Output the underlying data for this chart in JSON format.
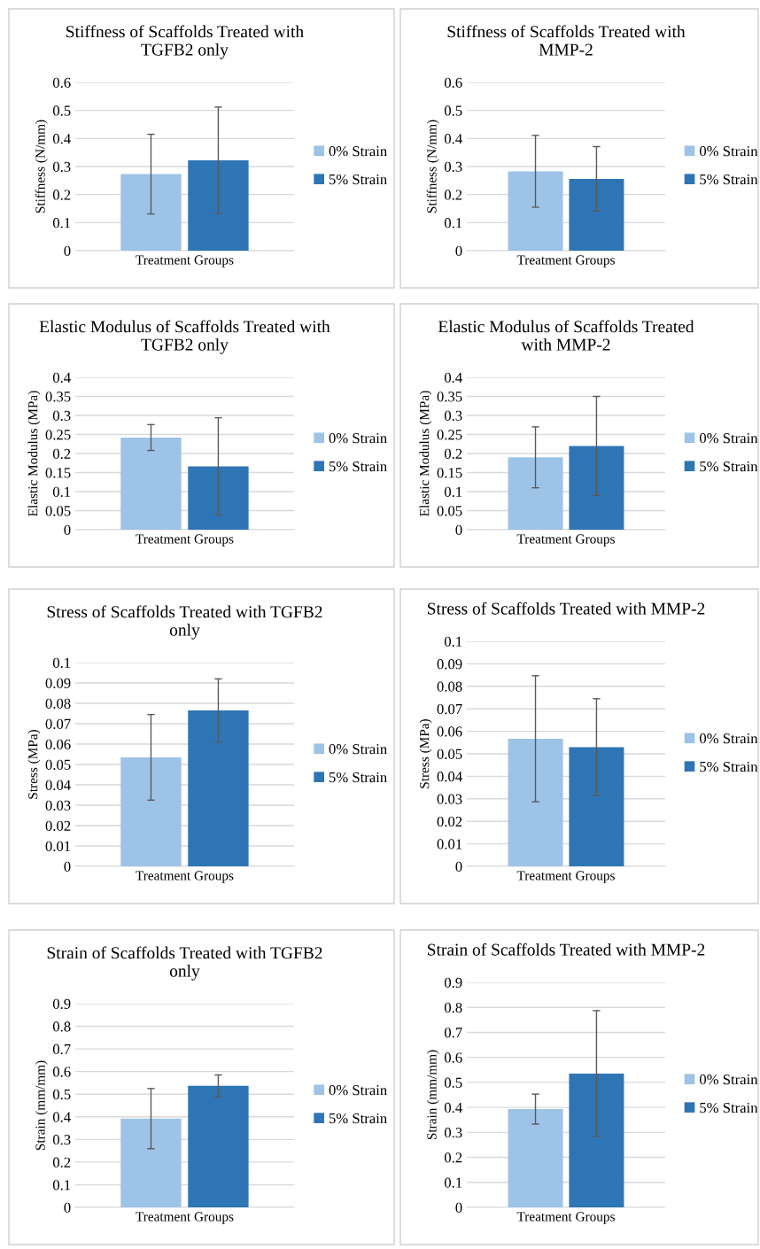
{
  "chart_data": [
    {
      "type": "bar",
      "title": "Stiffness of Scaffolds Treated with\nTGFB2 only",
      "ylabel": "Stiffness (N/mm)",
      "categories": [
        "Treatment Groups"
      ],
      "ylim": [
        0,
        0.6
      ],
      "yticks": [
        0,
        0.1,
        0.2,
        0.3,
        0.4,
        0.5,
        0.6
      ],
      "grid": "y",
      "legend": "right",
      "series": [
        {
          "name": "0% Strain",
          "color": "#9dc3e6",
          "values": [
            0.273
          ],
          "errors": [
            0.142
          ]
        },
        {
          "name": "5% Strain",
          "color": "#2e75b6",
          "values": [
            0.322
          ],
          "errors": [
            0.19
          ]
        }
      ]
    },
    {
      "type": "bar",
      "title": "Stiffness of Scaffolds Treated with\nMMP-2",
      "ylabel": "Stiffness (N/mm)",
      "categories": [
        "Treatment Groups"
      ],
      "ylim": [
        0,
        0.6
      ],
      "yticks": [
        0,
        0.1,
        0.2,
        0.3,
        0.4,
        0.5,
        0.6
      ],
      "grid": "y",
      "legend": "right",
      "series": [
        {
          "name": "0% Strain",
          "color": "#9dc3e6",
          "values": [
            0.283
          ],
          "errors": [
            0.128
          ]
        },
        {
          "name": "5% Strain",
          "color": "#2e75b6",
          "values": [
            0.256
          ],
          "errors": [
            0.115
          ]
        }
      ]
    },
    {
      "type": "bar",
      "title": "Elastic Modulus of Scaffolds Treated with\nTGFB2 only",
      "ylabel": "Elastic Modulus (MPa)",
      "categories": [
        "Treatment Groups"
      ],
      "ylim": [
        0,
        0.4
      ],
      "yticks": [
        0,
        0.05,
        0.1,
        0.15,
        0.2,
        0.25,
        0.3,
        0.35,
        0.4
      ],
      "grid": "y",
      "legend": "right",
      "series": [
        {
          "name": "0% Strain",
          "color": "#9dc3e6",
          "values": [
            0.242
          ],
          "errors": [
            0.034
          ]
        },
        {
          "name": "5% Strain",
          "color": "#2e75b6",
          "values": [
            0.166
          ],
          "errors": [
            0.128
          ]
        }
      ]
    },
    {
      "type": "bar",
      "title": "Elastic Modulus of Scaffolds Treated\nwith MMP-2",
      "ylabel": "Elastic Modulus (MPa)",
      "categories": [
        "Treatment Groups"
      ],
      "ylim": [
        0,
        0.4
      ],
      "yticks": [
        0,
        0.05,
        0.1,
        0.15,
        0.2,
        0.25,
        0.3,
        0.35,
        0.4
      ],
      "grid": "y",
      "legend": "right",
      "series": [
        {
          "name": "0% Strain",
          "color": "#9dc3e6",
          "values": [
            0.19
          ],
          "errors": [
            0.08
          ]
        },
        {
          "name": "5% Strain",
          "color": "#2e75b6",
          "values": [
            0.22
          ],
          "errors": [
            0.13
          ]
        }
      ]
    },
    {
      "type": "bar",
      "title": "Stress of Scaffolds Treated with TGFB2\nonly",
      "ylabel": "Stress (MPa)",
      "categories": [
        "Treatment Groups"
      ],
      "ylim": [
        0,
        0.1
      ],
      "yticks": [
        0,
        0.01,
        0.02,
        0.03,
        0.04,
        0.05,
        0.06,
        0.07,
        0.08,
        0.09,
        0.1
      ],
      "grid": "y",
      "legend": "right",
      "series": [
        {
          "name": "0% Strain",
          "color": "#9dc3e6",
          "values": [
            0.0535
          ],
          "errors": [
            0.021
          ]
        },
        {
          "name": "5% Strain",
          "color": "#2e75b6",
          "values": [
            0.0765
          ],
          "errors": [
            0.0155
          ]
        }
      ]
    },
    {
      "type": "bar",
      "title": "Stress of Scaffolds Treated with MMP-2",
      "ylabel": "Stress (MPa)",
      "categories": [
        "Treatment Groups"
      ],
      "ylim": [
        0,
        0.1
      ],
      "yticks": [
        0,
        0.01,
        0.02,
        0.03,
        0.04,
        0.05,
        0.06,
        0.07,
        0.08,
        0.09,
        0.1
      ],
      "grid": "y",
      "legend": "right",
      "series": [
        {
          "name": "0% Strain",
          "color": "#9dc3e6",
          "values": [
            0.0567
          ],
          "errors": [
            0.028
          ]
        },
        {
          "name": "5% Strain",
          "color": "#2e75b6",
          "values": [
            0.053
          ],
          "errors": [
            0.0215
          ]
        }
      ]
    },
    {
      "type": "bar",
      "title": "Strain of Scaffolds Treated with TGFB2\nonly",
      "ylabel": "Strain (mm/mm)",
      "categories": [
        "Treatment Groups"
      ],
      "ylim": [
        0,
        0.9
      ],
      "yticks": [
        0,
        0.1,
        0.2,
        0.3,
        0.4,
        0.5,
        0.6,
        0.7,
        0.8,
        0.9
      ],
      "grid": "y",
      "legend": "right",
      "series": [
        {
          "name": "0% Strain",
          "color": "#9dc3e6",
          "values": [
            0.392
          ],
          "errors": [
            0.133
          ]
        },
        {
          "name": "5% Strain",
          "color": "#2e75b6",
          "values": [
            0.537
          ],
          "errors": [
            0.048
          ]
        }
      ]
    },
    {
      "type": "bar",
      "title": "Strain of Scaffolds Treated with MMP-2",
      "ylabel": "Strain (mm/mm)",
      "categories": [
        "Treatment Groups"
      ],
      "ylim": [
        0,
        0.9
      ],
      "yticks": [
        0,
        0.1,
        0.2,
        0.3,
        0.4,
        0.5,
        0.6,
        0.7,
        0.8,
        0.9
      ],
      "grid": "y",
      "legend": "right",
      "series": [
        {
          "name": "0% Strain",
          "color": "#9dc3e6",
          "values": [
            0.393
          ],
          "errors": [
            0.06
          ]
        },
        {
          "name": "5% Strain",
          "color": "#2e75b6",
          "values": [
            0.535
          ],
          "errors": [
            0.252
          ]
        }
      ]
    }
  ]
}
